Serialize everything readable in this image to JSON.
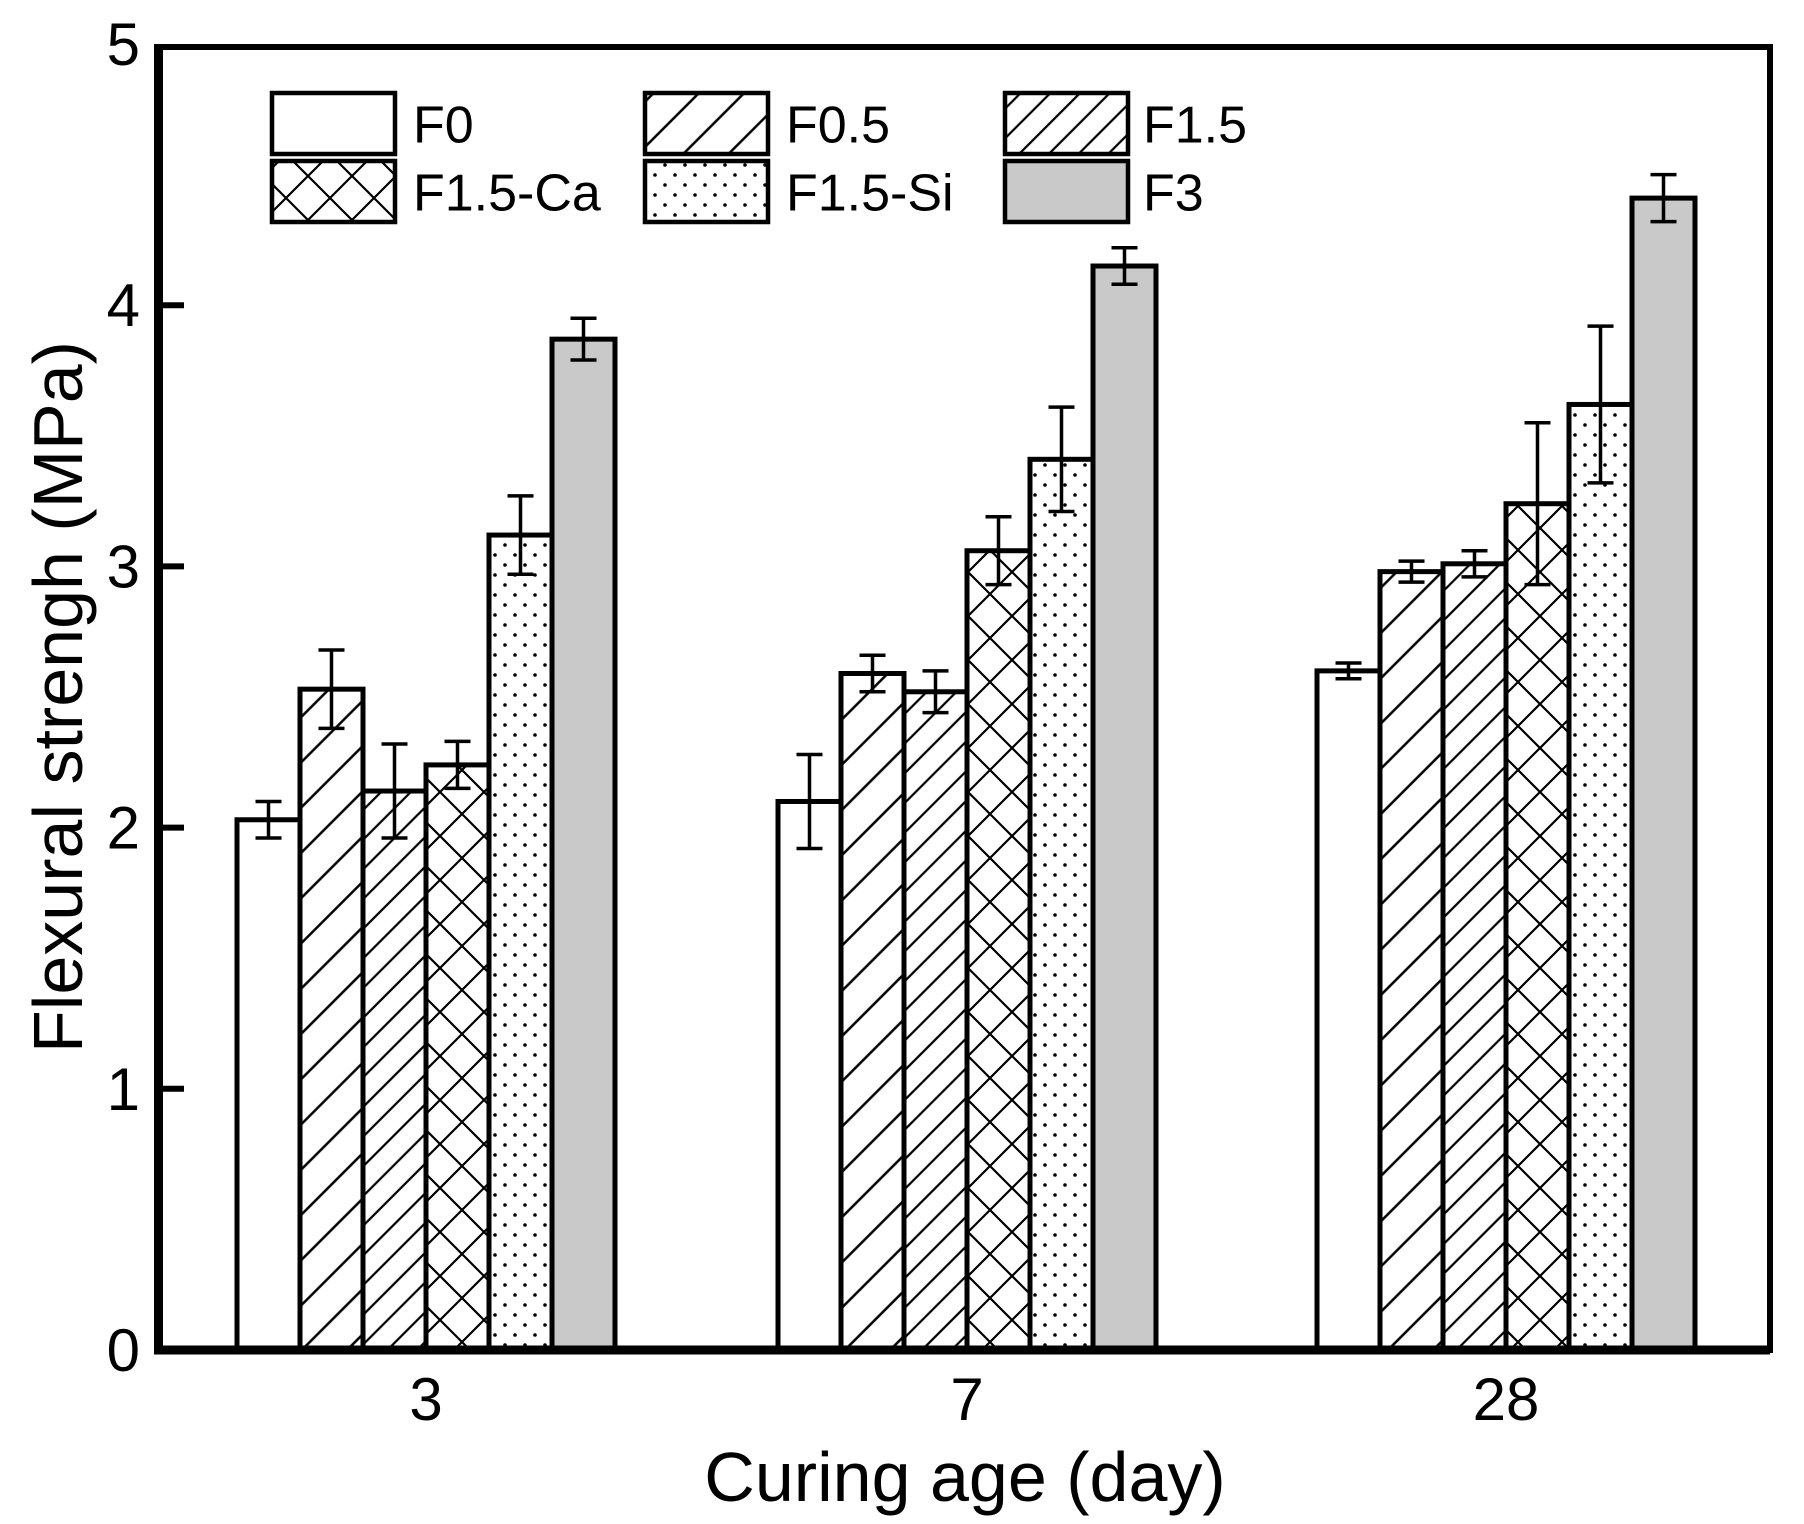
{
  "figure": {
    "background": "#ffffff"
  },
  "chart_data": {
    "type": "bar",
    "title": "",
    "xlabel": "Curing age (day)",
    "ylabel": "Flexural strengh (MPa)",
    "ylim": [
      0,
      5
    ],
    "y_ticks": [
      0,
      1,
      2,
      3,
      4,
      5
    ],
    "categories": [
      "3",
      "7",
      "28"
    ],
    "grid": false,
    "error_bars": true,
    "legend_position": "top-left-inside",
    "legend_columns": 3,
    "series": [
      {
        "name": "F0",
        "pattern": "plain",
        "values": [
          2.03,
          2.1,
          2.6
        ],
        "errors": [
          0.07,
          0.18,
          0.03
        ]
      },
      {
        "name": "F0.5",
        "pattern": "hatch-wide",
        "values": [
          2.53,
          2.59,
          2.98
        ],
        "errors": [
          0.15,
          0.07,
          0.04
        ]
      },
      {
        "name": "F1.5",
        "pattern": "hatch-fine",
        "values": [
          2.14,
          2.52,
          3.01
        ],
        "errors": [
          0.18,
          0.08,
          0.05
        ]
      },
      {
        "name": "F1.5-Ca",
        "pattern": "crosshatch",
        "values": [
          2.24,
          3.06,
          3.24
        ],
        "errors": [
          0.09,
          0.13,
          0.31
        ]
      },
      {
        "name": "F1.5-Si",
        "pattern": "dots",
        "values": [
          3.12,
          3.41,
          3.62
        ],
        "errors": [
          0.15,
          0.2,
          0.3
        ]
      },
      {
        "name": "F3",
        "pattern": "solid",
        "values": [
          3.87,
          4.15,
          4.41
        ],
        "errors": [
          0.08,
          0.07,
          0.09
        ]
      }
    ],
    "colors": {
      "bar_fill": "#ffffff",
      "stroke": "#000000",
      "solid_gray": "#c9c9c9",
      "background": "#ffffff"
    }
  }
}
